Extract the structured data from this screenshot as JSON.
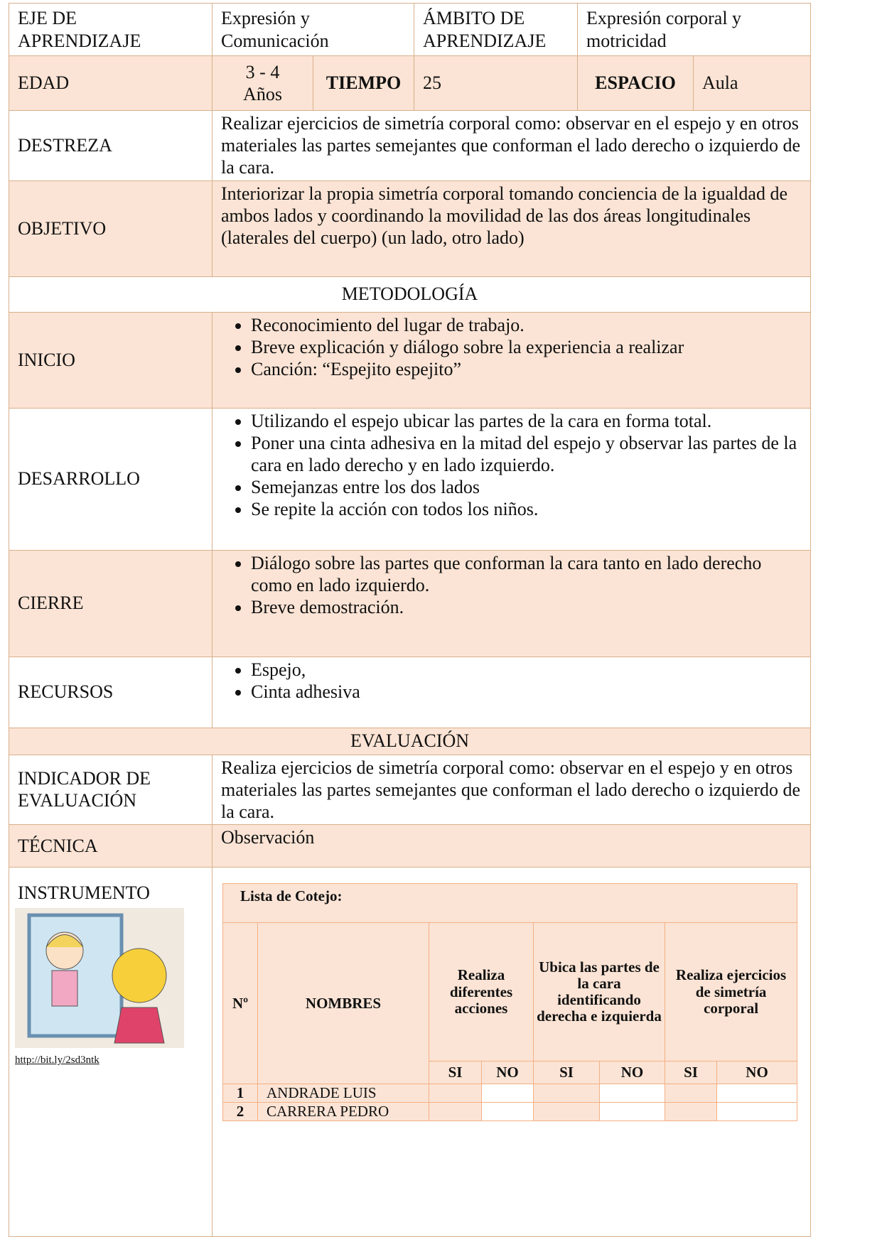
{
  "header": {
    "eje_label": "EJE DE APRENDIZAJE",
    "eje": "Expresión y Comunicación",
    "ambito_label": "ÁMBITO DE APRENDIZAJE",
    "ambito": "Expresión corporal y motricidad"
  },
  "info": {
    "edad_label": "EDAD",
    "edad": "3 - 4 Años",
    "tiempo_label": "TIEMPO",
    "tiempo": "25",
    "espacio_label": "ESPACIO",
    "espacio": "Aula"
  },
  "destreza": {
    "label": "DESTREZA",
    "text": "Realizar ejercicios de simetría corporal como: observar en el espejo y en otros materiales las partes semejantes que conforman el lado derecho o izquierdo de la cara."
  },
  "objetivo": {
    "label": "OBJETIVO",
    "text": "Interiorizar la propia simetría corporal tomando conciencia de la igualdad de ambos lados y coordinando la movilidad de las dos áreas longitudinales (laterales del cuerpo) (un lado, otro lado)"
  },
  "metodologia": {
    "title": "METODOLOGÍA",
    "sections": [
      {
        "label": "INICIO",
        "items": [
          "Reconocimiento del lugar de trabajo.",
          "Breve explicación y diálogo sobre la experiencia a realizar",
          "Canción: “Espejito espejito”"
        ]
      },
      {
        "label": "DESARROLLO",
        "items": [
          "Utilizando el espejo ubicar las partes de la cara en forma total.",
          "Poner una cinta adhesiva en la mitad del espejo y observar las partes de la cara en lado derecho y en lado izquierdo.",
          "Semejanzas entre los dos lados",
          "Se repite la acción con todos los niños."
        ]
      },
      {
        "label": "CIERRE",
        "items": [
          "Diálogo sobre las partes que conforman la cara tanto en lado derecho como en lado izquierdo.",
          "Breve demostración."
        ]
      },
      {
        "label": "RECURSOS",
        "items": [
          "Espejo,",
          "Cinta adhesiva"
        ]
      }
    ]
  },
  "evaluacion": {
    "title": "EVALUACIÓN",
    "indicador": {
      "label": "INDICADOR DE EVALUACIÓN",
      "text": "Realiza ejercicios de simetría corporal como: observar en el espejo y en otros materiales las partes semejantes que conforman el lado derecho o izquierdo de la cara."
    },
    "tecnica": {
      "label": "TÉCNICA",
      "text": "Observación"
    },
    "instrumento": {
      "label": "INSTRUMENTO",
      "link": "http://bit.ly/2sd3ntk",
      "checklist": {
        "title": "Lista de Cotejo:",
        "number_header": "Nº",
        "names_header": "NOMBRES",
        "criteria": [
          "Realiza diferentes acciones",
          "Ubica las partes de la cara identificando derecha e izquierda",
          "Realiza ejercicios de simetría corporal"
        ],
        "yes": "SI",
        "no": "NO",
        "rows": [
          {
            "number": 1,
            "name": "ANDRADE LUIS"
          },
          {
            "number": 2,
            "name": "CARRERA PEDRO"
          }
        ]
      }
    }
  }
}
